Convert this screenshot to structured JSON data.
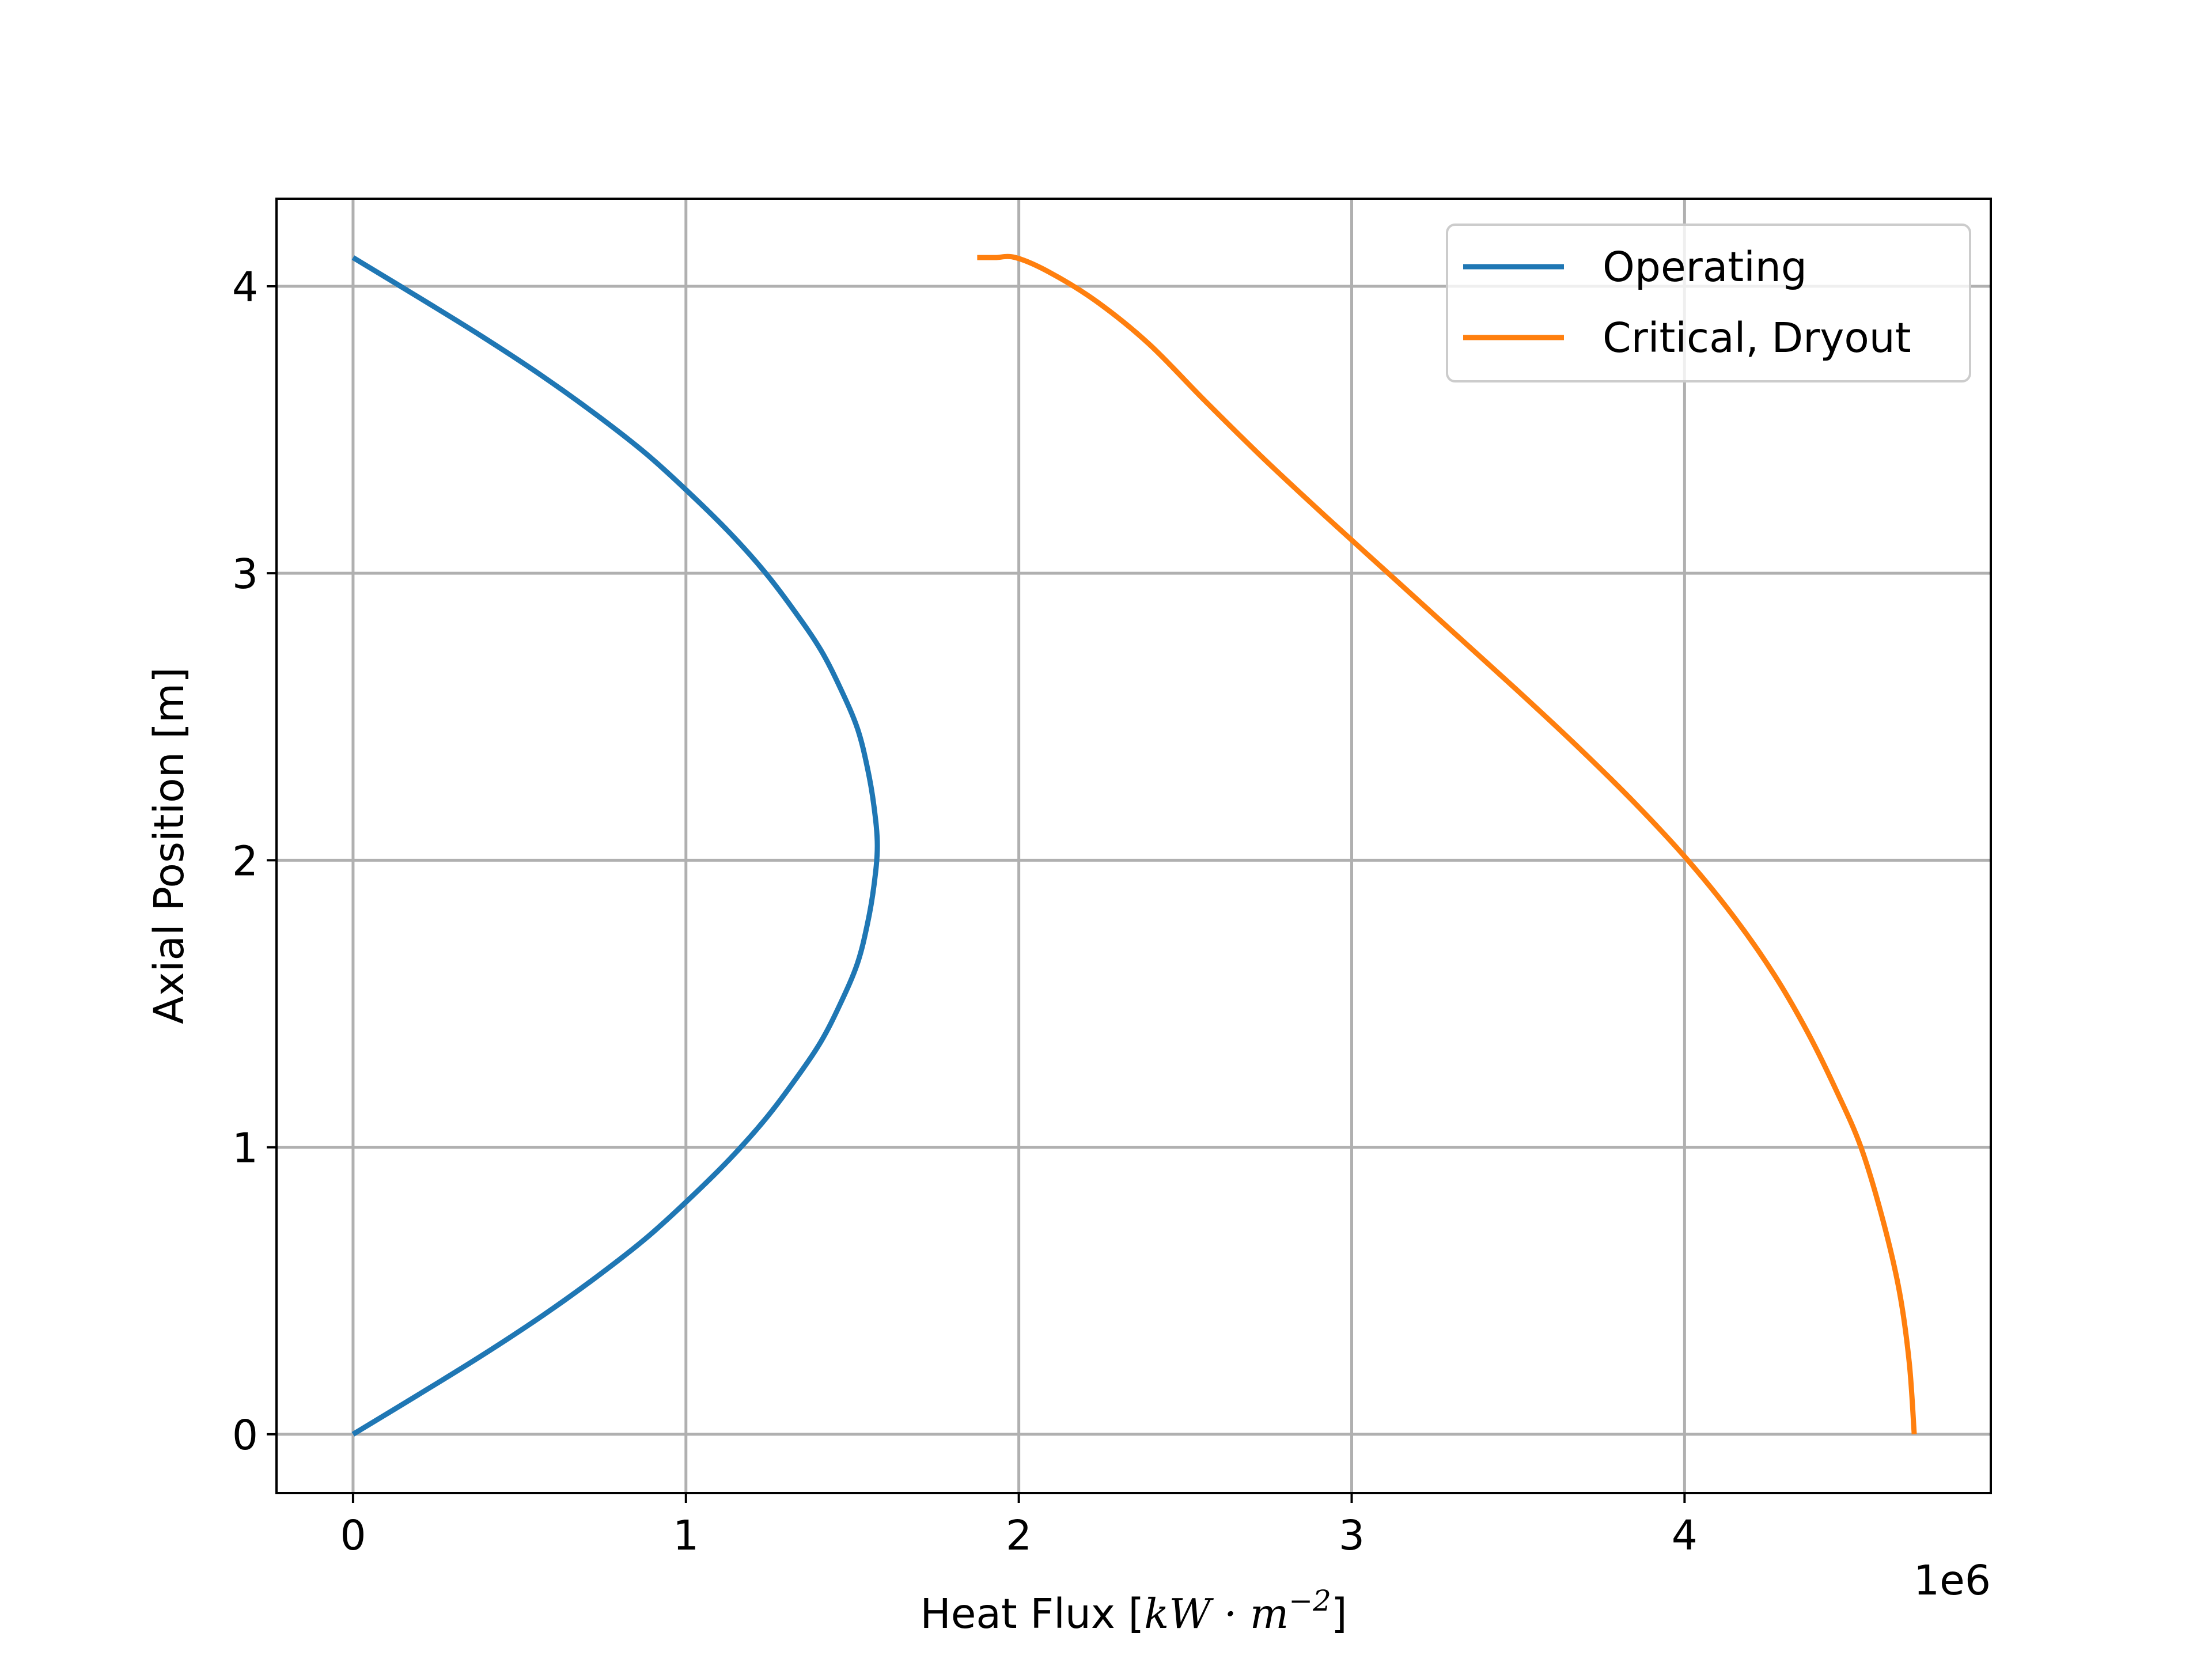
{
  "chart_data": {
    "type": "line",
    "xlabel_text": "Heat Flux  [",
    "xlabel_math": "kW · m",
    "xlabel_sup": "−2",
    "xlabel_close": "]",
    "ylabel": "Axial Position  [m]",
    "x_offset_label": "1e6",
    "xlim": [
      -230000,
      4920000
    ],
    "ylim": [
      -0.205,
      4.305
    ],
    "x_ticks": [
      0,
      1000000,
      2000000,
      3000000,
      4000000
    ],
    "x_tick_labels": [
      "0",
      "1",
      "2",
      "3",
      "4"
    ],
    "y_ticks": [
      0,
      1,
      2,
      3,
      4
    ],
    "y_tick_labels": [
      "0",
      "1",
      "2",
      "3",
      "4"
    ],
    "grid": true,
    "legend_position": "top-right",
    "series": [
      {
        "name": "Operating",
        "color": "#1f77b4",
        "x": [
          0,
          195000,
          385000,
          565000,
          730000,
          880000,
          1010000,
          1130000,
          1235000,
          1325000,
          1405000,
          1465000,
          1515000,
          1545000,
          1565000,
          1575000,
          1565000,
          1545000,
          1515000,
          1465000,
          1405000,
          1325000,
          1235000,
          1130000,
          1010000,
          880000,
          730000,
          565000,
          385000,
          195000,
          0
        ],
        "y": [
          0,
          0.137,
          0.273,
          0.41,
          0.547,
          0.683,
          0.82,
          0.957,
          1.093,
          1.23,
          1.367,
          1.503,
          1.64,
          1.777,
          1.913,
          2.05,
          2.187,
          2.323,
          2.46,
          2.597,
          2.733,
          2.87,
          3.007,
          3.143,
          3.28,
          3.417,
          3.553,
          3.69,
          3.827,
          3.963,
          4.1
        ]
      },
      {
        "name": "Critical, Dryout",
        "color": "#ff7f0e",
        "x": [
          4690000,
          4675000,
          4645000,
          4595000,
          4530000,
          4455000,
          4370000,
          4270000,
          4150000,
          4010000,
          3850000,
          3675000,
          3490000,
          3300000,
          3110000,
          2920000,
          2735000,
          2560000,
          2390000,
          2230000,
          2090000,
          1990000,
          1930000,
          1890000,
          1875000
        ],
        "y": [
          0,
          0.25,
          0.5,
          0.75,
          1.0,
          1.2,
          1.4,
          1.6,
          1.8,
          2.0,
          2.2,
          2.4,
          2.6,
          2.8,
          3.0,
          3.2,
          3.4,
          3.6,
          3.8,
          3.95,
          4.05,
          4.1,
          4.1,
          4.1,
          4.1
        ]
      }
    ]
  }
}
